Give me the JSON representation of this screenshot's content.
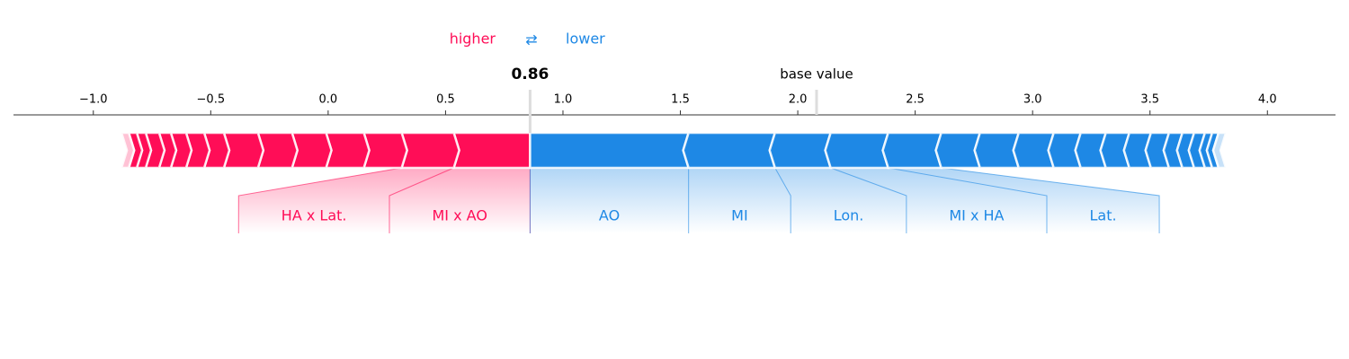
{
  "chart_data": {
    "type": "force",
    "legend_arrow": "⇄",
    "output_value": 0.86,
    "base_value": 2.08,
    "base_label": "base value",
    "xlim": [
      -1.34,
      4.29
    ],
    "xticks": [
      {
        "value": -1.0,
        "label": "−1.0"
      },
      {
        "value": -0.5,
        "label": "−0.5"
      },
      {
        "value": 0,
        "label": "0.0"
      },
      0.5,
      {
        "value": 1.0,
        "label": "1.0"
      },
      1.5,
      {
        "value": 2.0,
        "label": "2.0"
      },
      2.5,
      {
        "value": 3.0,
        "label": "3.0"
      },
      3.5,
      {
        "value": 4.0,
        "label": "4.0"
      }
    ],
    "series": [
      {
        "name": "higher",
        "color": "#ff0d57",
        "values": [
          0.325,
          0.222,
          0.161,
          0.161,
          0.145,
          0.145,
          0.145,
          0.084,
          0.077,
          0.065,
          0.05,
          0.057,
          0.038,
          0.034,
          0.031
        ],
        "labels": [
          "MI x AO",
          "HA x Lat.",
          null,
          null,
          null,
          null,
          null,
          null,
          null,
          null,
          null,
          null,
          null,
          null,
          null
        ]
      },
      {
        "name": "lower",
        "color": "#1e88e5",
        "values": [
          0.675,
          0.368,
          0.237,
          0.245,
          0.226,
          0.165,
          0.165,
          0.149,
          0.115,
          0.107,
          0.1,
          0.092,
          0.077,
          0.057,
          0.05,
          0.046,
          0.031,
          0.027,
          0.031
        ],
        "labels": [
          "AO",
          "MI",
          "Lon.",
          "MI x HA",
          "Lat.",
          null,
          null,
          null,
          null,
          null,
          null,
          null,
          null,
          null,
          null,
          null,
          null,
          null,
          null
        ]
      }
    ]
  }
}
